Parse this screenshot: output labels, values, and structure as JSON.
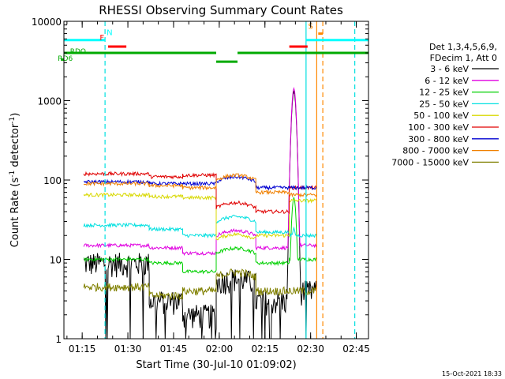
{
  "chart_data": {
    "type": "line",
    "title": "RHESSI Observing Summary Count Rates",
    "xlabel": "Start Time (30-Jul-10 01:09:02)",
    "ylabel_prefix": "Count Rate (s",
    "ylabel_exp1": "-1",
    "ylabel_mid": " detector",
    "ylabel_exp2": "-1",
    "ylabel_suffix": ")",
    "y_scale": "log",
    "ylim": [
      1,
      10000
    ],
    "xlim_minutes": [
      0,
      100
    ],
    "x_ticks": [
      {
        "t": 6,
        "label": "01:15"
      },
      {
        "t": 21,
        "label": "01:30"
      },
      {
        "t": 36,
        "label": "01:45"
      },
      {
        "t": 51,
        "label": "02:00"
      },
      {
        "t": 66,
        "label": "02:15"
      },
      {
        "t": 81,
        "label": "02:30"
      },
      {
        "t": 96,
        "label": "02:45"
      }
    ],
    "y_ticks": [
      {
        "v": 1,
        "label": "1"
      },
      {
        "v": 10,
        "label": "10"
      },
      {
        "v": 100,
        "label": "100"
      },
      {
        "v": 1000,
        "label": "1000"
      },
      {
        "v": 10000,
        "label": "10000"
      }
    ],
    "legend": {
      "placement": "right",
      "header1": "Det 1,3,4,5,6,9,",
      "header2": "FDecim 1, Att 0",
      "items": [
        {
          "label": "3 - 6 keV",
          "color": "#000000"
        },
        {
          "label": "6 - 12 keV",
          "color": "#e000e0"
        },
        {
          "label": "12 - 25 keV",
          "color": "#00d000"
        },
        {
          "label": "25 - 50 keV",
          "color": "#00e0e0"
        },
        {
          "label": "50 - 100 keV",
          "color": "#d8d800"
        },
        {
          "label": "100 - 300 keV",
          "color": "#e00000"
        },
        {
          "label": "300 - 800 keV",
          "color": "#0000d0"
        },
        {
          "label": "800 - 7000 keV",
          "color": "#f08000"
        },
        {
          "label": "7000 - 15000 keV",
          "color": "#808000"
        }
      ]
    },
    "data_interval_minutes": [
      6.5,
      83
    ],
    "segments": [
      {
        "start": 6.5,
        "end": 28
      },
      {
        "start": 28,
        "end": 39
      },
      {
        "start": 39,
        "end": 50
      },
      {
        "start": 50,
        "end": 63
      },
      {
        "start": 63,
        "end": 74
      },
      {
        "start": 74,
        "end": 83
      }
    ],
    "series_levels": [
      {
        "name": "3 - 6 keV",
        "values": [
          9,
          3,
          2,
          5,
          3,
          4
        ]
      },
      {
        "name": "6 - 12 keV",
        "values": [
          15,
          14,
          12,
          20,
          14,
          15
        ]
      },
      {
        "name": "12 - 25 keV",
        "values": [
          10,
          9,
          7,
          12,
          9,
          10
        ]
      },
      {
        "name": "25 - 50 keV",
        "values": [
          27,
          24,
          20,
          30,
          22,
          20
        ]
      },
      {
        "name": "50 - 100 keV",
        "values": [
          65,
          62,
          60,
          18,
          20,
          55
        ]
      },
      {
        "name": "100 - 300 keV",
        "values": [
          120,
          110,
          115,
          45,
          40,
          80
        ]
      },
      {
        "name": "300 - 800 keV",
        "values": [
          95,
          90,
          90,
          95,
          80,
          80
        ]
      },
      {
        "name": "800 - 7000 keV",
        "values": [
          90,
          85,
          80,
          100,
          70,
          65
        ]
      },
      {
        "name": "7000 - 15000 keV",
        "values": [
          4.5,
          3.5,
          4,
          6,
          4,
          4
        ]
      }
    ],
    "flare_peak": {
      "time_minutes": 75.5,
      "value": 1300
    },
    "flags": [
      {
        "label": "N",
        "color": "#00ffff",
        "t_start": 0,
        "t_end": 14,
        "level": 5800,
        "label_t": 15
      },
      {
        "label": "F",
        "color": "#ff0000",
        "t_start": 14,
        "t_end": 20,
        "level": 5000,
        "label_t": 12.5
      },
      {
        "label": "S",
        "color": "#ff8800",
        "t_start": 83,
        "t_end": 85,
        "level": 7000,
        "label_t": 81
      }
    ],
    "flag_labels": [
      {
        "label": "RDO",
        "color": "#00aa00",
        "t": 2,
        "level": 4300
      },
      {
        "label": "RD6",
        "color": "#00aa00",
        "t": -2,
        "level": 3500
      }
    ],
    "vlines": [
      {
        "t": 13.5,
        "color": "#00e0e0",
        "style": "dashed"
      },
      {
        "t": 79.5,
        "color": "#00e0e0",
        "style": "solid"
      },
      {
        "t": 83,
        "color": "#ff8800",
        "style": "solid"
      },
      {
        "t": 85,
        "color": "#ff8800",
        "style": "dashed"
      },
      {
        "t": 95.5,
        "color": "#00e0e0",
        "style": "dashed"
      }
    ],
    "grid": false
  },
  "footer": {
    "timestamp": "15-Oct-2021 18:33"
  }
}
